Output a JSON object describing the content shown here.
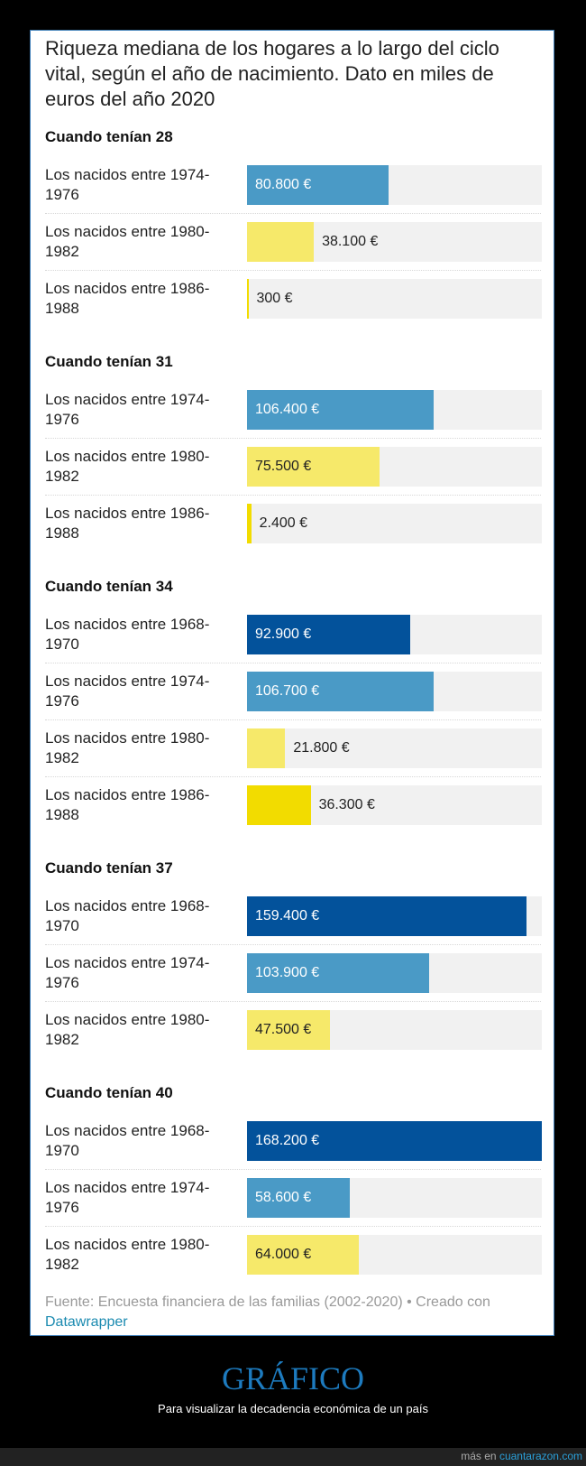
{
  "title": "Riqueza mediana de los hogares a lo largo del ciclo vital, según el año de nacimiento. Dato en miles de euros del año 2020",
  "chart_data": {
    "type": "bar",
    "orientation": "horizontal",
    "unit": "€",
    "max": 168200,
    "colors": {
      "1968-1970": "#03529b",
      "1974-1976": "#4a9ac6",
      "1980-1982": "#f6e96a",
      "1986-1988": "#f2dc00"
    },
    "groups": [
      {
        "label": "Cuando tenían 28",
        "rows": [
          {
            "label": "Los nacidos entre 1974-1976",
            "cohort": "1974-1976",
            "value": 80800,
            "text": "80.800 €"
          },
          {
            "label": "Los nacidos entre 1980-1982",
            "cohort": "1980-1982",
            "value": 38100,
            "text": "38.100 €"
          },
          {
            "label": "Los nacidos entre 1986-1988",
            "cohort": "1986-1988",
            "value": 300,
            "text": "300 €"
          }
        ]
      },
      {
        "label": "Cuando tenían 31",
        "rows": [
          {
            "label": "Los nacidos entre 1974-1976",
            "cohort": "1974-1976",
            "value": 106400,
            "text": "106.400 €"
          },
          {
            "label": "Los nacidos entre 1980-1982",
            "cohort": "1980-1982",
            "value": 75500,
            "text": "75.500 €"
          },
          {
            "label": "Los nacidos entre 1986-1988",
            "cohort": "1986-1988",
            "value": 2400,
            "text": "2.400 €"
          }
        ]
      },
      {
        "label": "Cuando tenían 34",
        "rows": [
          {
            "label": "Los nacidos entre 1968-1970",
            "cohort": "1968-1970",
            "value": 92900,
            "text": "92.900 €"
          },
          {
            "label": "Los nacidos entre 1974-1976",
            "cohort": "1974-1976",
            "value": 106700,
            "text": "106.700 €"
          },
          {
            "label": "Los nacidos entre 1980-1982",
            "cohort": "1980-1982",
            "value": 21800,
            "text": "21.800 €"
          },
          {
            "label": "Los nacidos entre 1986-1988",
            "cohort": "1986-1988",
            "value": 36300,
            "text": "36.300 €"
          }
        ]
      },
      {
        "label": "Cuando tenían 37",
        "rows": [
          {
            "label": "Los nacidos entre 1968-1970",
            "cohort": "1968-1970",
            "value": 159400,
            "text": "159.400 €"
          },
          {
            "label": "Los nacidos entre 1974-1976",
            "cohort": "1974-1976",
            "value": 103900,
            "text": "103.900 €"
          },
          {
            "label": "Los nacidos entre 1980-1982",
            "cohort": "1980-1982",
            "value": 47500,
            "text": "47.500 €"
          }
        ]
      },
      {
        "label": "Cuando tenían 40",
        "rows": [
          {
            "label": "Los nacidos entre 1968-1970",
            "cohort": "1968-1970",
            "value": 168200,
            "text": "168.200 €"
          },
          {
            "label": "Los nacidos entre 1974-1976",
            "cohort": "1974-1976",
            "value": 58600,
            "text": "58.600 €"
          },
          {
            "label": "Los nacidos entre 1980-1982",
            "cohort": "1980-1982",
            "value": 64000,
            "text": "64.000 €"
          }
        ]
      }
    ]
  },
  "footer": {
    "source": "Fuente: Encuesta financiera de las familias (2002-2020) • Creado con",
    "link": "Datawrapper"
  },
  "post": {
    "title": "GRÁFICO",
    "subtitle": "Para visualizar la decadencia económica de un país"
  },
  "site": {
    "prefix": "más en",
    "link": "cuantarazon.com"
  }
}
